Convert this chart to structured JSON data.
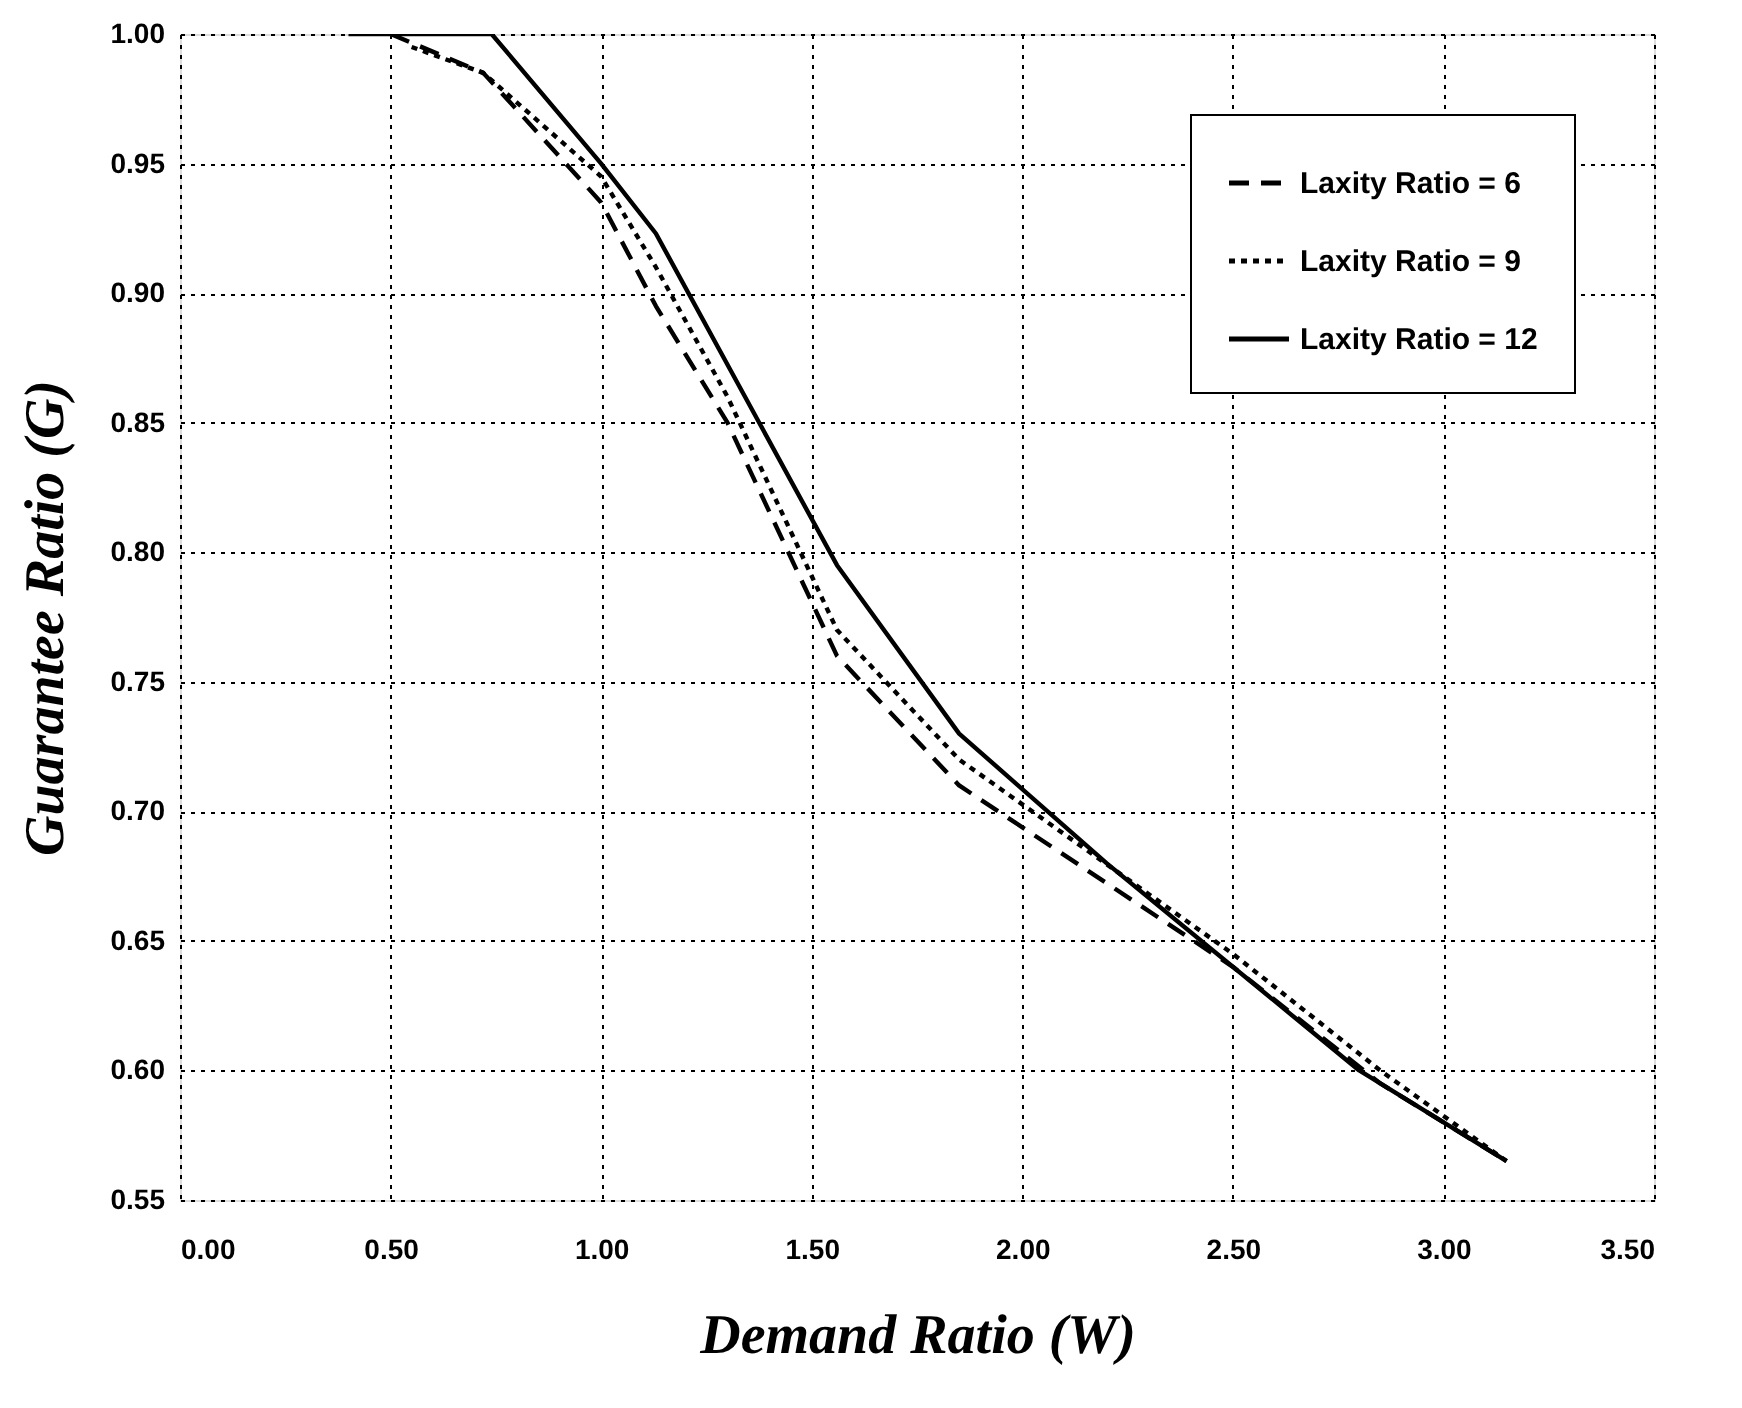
{
  "chart_data": {
    "type": "line",
    "xlabel": "Demand Ratio (W)",
    "ylabel": "Guarantee Ratio (G)",
    "xlim": [
      0,
      3.5
    ],
    "xticks": [
      {
        "value": 0,
        "label": "0.00"
      },
      {
        "value": 0.5,
        "label": "0.50"
      },
      {
        "value": 1,
        "label": "1.00"
      },
      {
        "value": 1.5,
        "label": "1.50"
      },
      {
        "value": 2,
        "label": "2.00"
      },
      {
        "value": 2.5,
        "label": "2.50"
      },
      {
        "value": 3,
        "label": "3.00"
      },
      {
        "value": 3.5,
        "label": "3.50"
      }
    ],
    "ylim": [
      0.55,
      1.0
    ],
    "yticks": [
      {
        "value": 0.55,
        "label": "0.55"
      },
      {
        "value": 0.6,
        "label": "0.60"
      },
      {
        "value": 0.65,
        "label": "0.65"
      },
      {
        "value": 0.7,
        "label": "0.70"
      },
      {
        "value": 0.75,
        "label": "0.75"
      },
      {
        "value": 0.8,
        "label": "0.80"
      },
      {
        "value": 0.85,
        "label": "0.85"
      },
      {
        "value": 0.9,
        "label": "0.90"
      },
      {
        "value": 0.95,
        "label": "0.95"
      },
      {
        "value": 1.0,
        "label": "1.00"
      }
    ],
    "grid": true,
    "legend": "top right",
    "marker": "none",
    "series": [
      {
        "name": "Laxity Ratio =  6",
        "color": "#000000",
        "line_style": "dashed",
        "x": [
          0.5,
          0.72,
          1.0,
          1.13,
          1.3,
          1.56,
          1.85,
          2.5,
          2.85,
          3.15
        ],
        "values": [
          1.0,
          0.985,
          0.935,
          0.895,
          0.85,
          0.76,
          0.71,
          0.64,
          0.595,
          0.565
        ]
      },
      {
        "name": "Laxity Ratio =  9",
        "color": "#000000",
        "line_style": "dotted",
        "x": [
          0.55,
          0.72,
          1.0,
          1.13,
          1.3,
          1.56,
          1.85,
          2.5,
          2.85,
          3.15
        ],
        "values": [
          0.995,
          0.985,
          0.945,
          0.91,
          0.86,
          0.77,
          0.72,
          0.645,
          0.6,
          0.565
        ]
      },
      {
        "name": "Laxity Ratio = 12",
        "color": "#000000",
        "line_style": "solid",
        "x": [
          0.4,
          0.74,
          1.0,
          1.13,
          1.56,
          1.85,
          2.2,
          2.8,
          3.15
        ],
        "values": [
          1.0,
          1.0,
          0.95,
          0.923,
          0.795,
          0.73,
          0.68,
          0.6,
          0.565
        ]
      }
    ]
  }
}
